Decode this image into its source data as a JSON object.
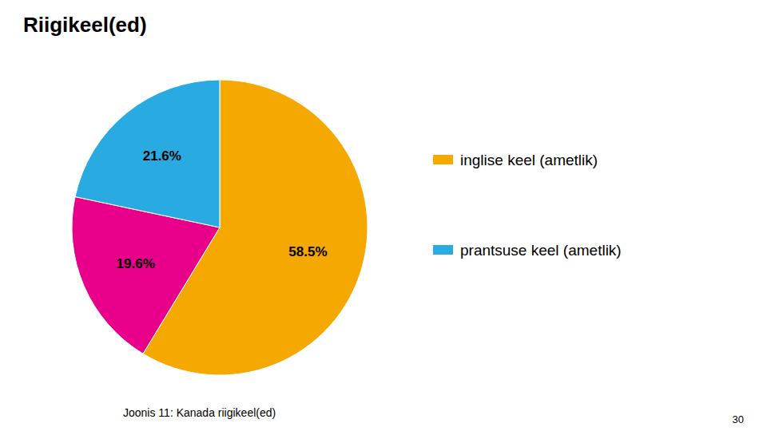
{
  "chart_data": {
    "type": "pie",
    "title": "Riigikeel(ed)",
    "categories": [
      "inglise keel (ametlik)",
      null,
      "prantsuse keel (ametlik)"
    ],
    "values": [
      58.5,
      19.6,
      21.6
    ],
    "value_labels": [
      "58.5%",
      "19.6%",
      "21.6%"
    ],
    "colors": [
      "#F5A800",
      "#E8008A",
      "#29ABE2"
    ],
    "data_labels": true,
    "legend": "right",
    "annotations": [
      "Joonis 11: Kanada riigikeel(ed)",
      "30"
    ]
  }
}
